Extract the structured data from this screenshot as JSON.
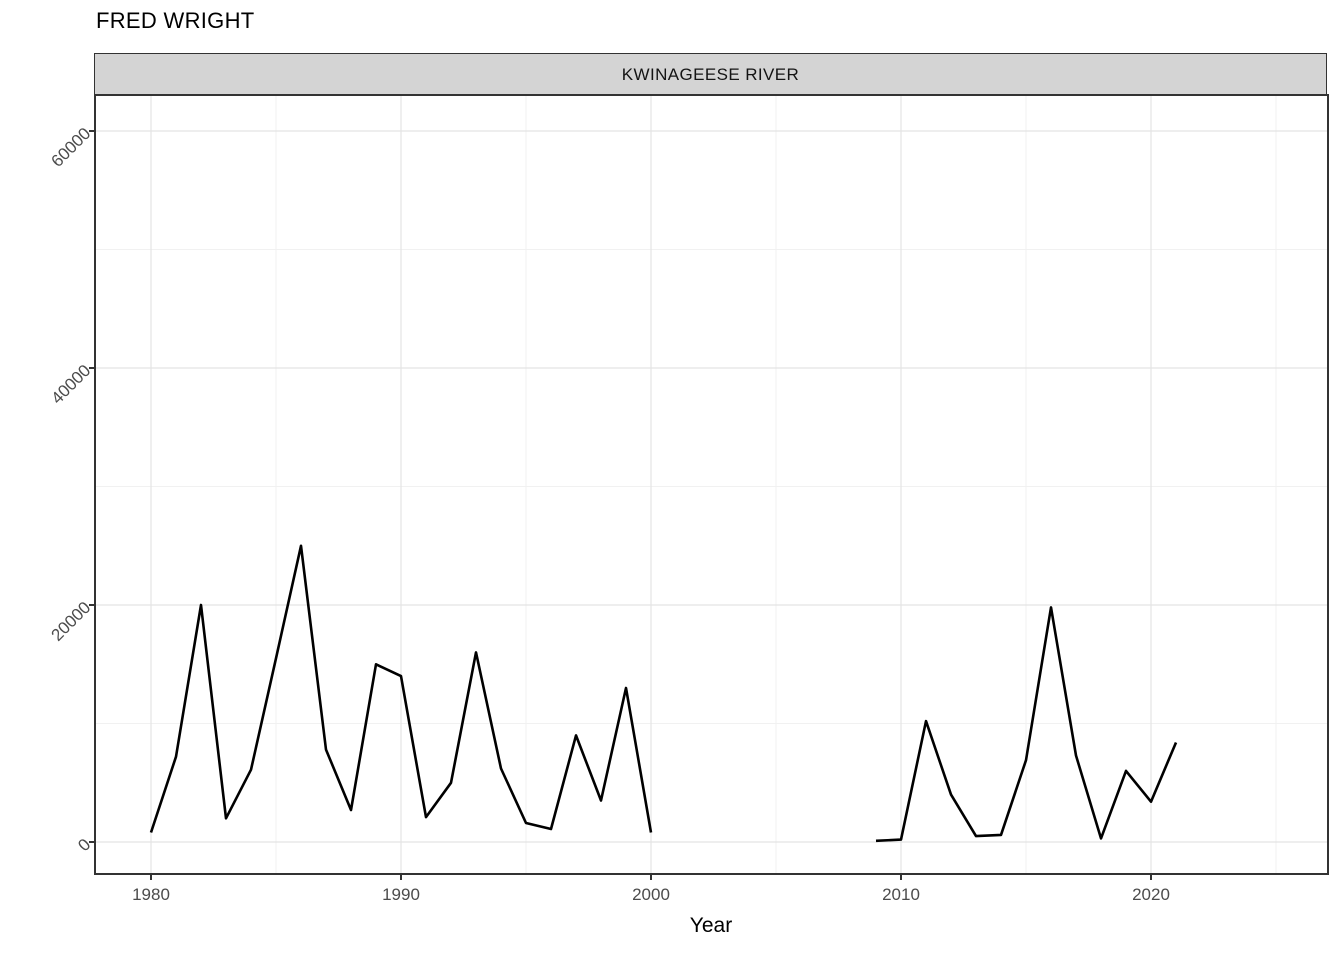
{
  "chart_data": {
    "type": "line",
    "title": "FRED WRIGHT",
    "facet_label": "KWINAGEESE RIVER",
    "xlabel": "Year",
    "ylabel": "",
    "x_ticks": [
      1980,
      1990,
      2000,
      2010,
      2020
    ],
    "x_minor_ticks": [
      1985,
      1995,
      2005,
      2015,
      2025
    ],
    "y_ticks": [
      0,
      20000,
      40000,
      60000
    ],
    "y_minor_ticks": [
      10000,
      30000,
      50000
    ],
    "xlim": [
      1977.8,
      2027.04
    ],
    "ylim": [
      -2616,
      62954
    ],
    "grid": true,
    "legend": "none",
    "line_color": "#000000",
    "major_grid_color": "#e4e4e4",
    "minor_grid_color": "#f1f1f1",
    "strip_fill": "#d4d4d4",
    "panel_border_color": "#333333",
    "axis_text_color": "#4c4c4c",
    "series": [
      {
        "name": "KWINAGEESE RIVER 1980-2000",
        "x": [
          1980,
          1981,
          1982,
          1983,
          1984,
          1985,
          1986,
          1987,
          1988,
          1989,
          1990,
          1991,
          1992,
          1993,
          1994,
          1995,
          1996,
          1997,
          1998,
          1999,
          2000
        ],
        "values": [
          800,
          7200,
          20000,
          2000,
          6100,
          15500,
          25000,
          7800,
          2700,
          15000,
          14000,
          2100,
          5000,
          16000,
          6200,
          1600,
          1100,
          9000,
          3500,
          13000,
          800
        ]
      },
      {
        "name": "KWINAGEESE RIVER 2009-2021",
        "x": [
          2009,
          2010,
          2011,
          2012,
          2013,
          2014,
          2015,
          2016,
          2017,
          2018,
          2019,
          2020,
          2021
        ],
        "values": [
          100,
          200,
          10200,
          4000,
          500,
          600,
          6900,
          19800,
          7300,
          300,
          6000,
          3400,
          8400
        ]
      }
    ]
  }
}
